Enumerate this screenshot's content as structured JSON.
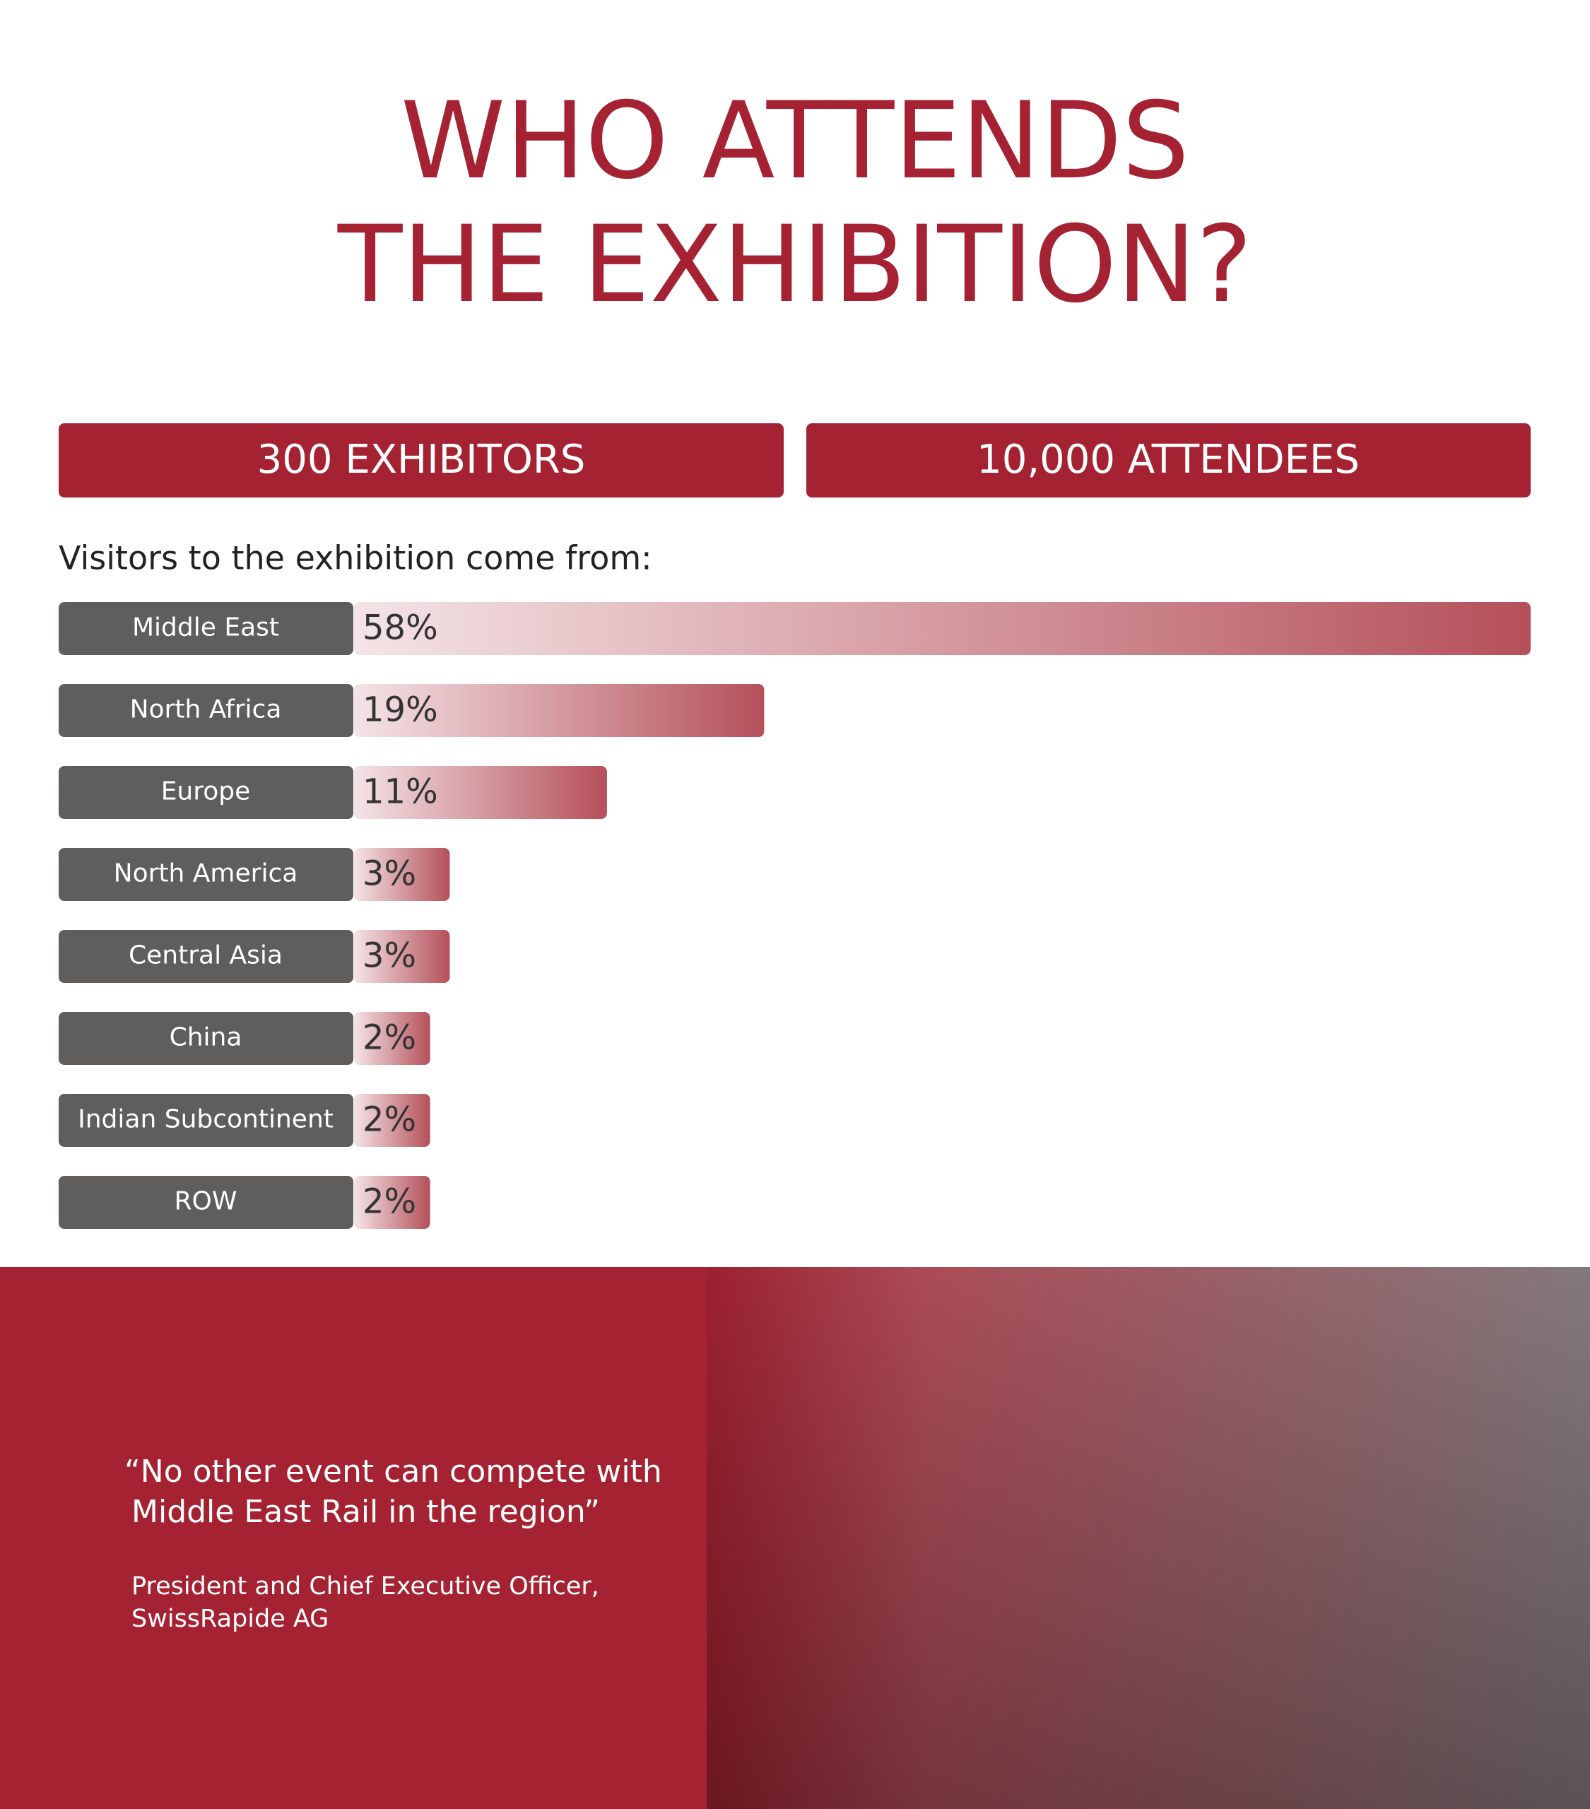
{
  "header": {
    "title_lines": [
      "WHO ATTENDS",
      "THE EXHIBITION?"
    ]
  },
  "stats": [
    "300 EXHIBITORS",
    "10,000 ATTENDEES"
  ],
  "chart_data": {
    "type": "bar",
    "orientation": "horizontal",
    "title": "Visitors to the exhibition come from:",
    "categories": [
      "Middle East",
      "North Africa",
      "Europe",
      "North America",
      "Central Asia",
      "China",
      "Indian Subcontinent",
      "ROW"
    ],
    "values": [
      58,
      19,
      11,
      3,
      3,
      2,
      2,
      2
    ],
    "value_labels": [
      "58%",
      "19%",
      "11%",
      "3%",
      "3%",
      "2%",
      "2%",
      "2%"
    ],
    "color": "#b5505a"
  },
  "quote": {
    "lines": [
      "“No other event can compete with",
      "Middle East Rail in the region”"
    ],
    "attribution": [
      "President and Chief Executive Officer,",
      "SwissRapide AG"
    ]
  }
}
